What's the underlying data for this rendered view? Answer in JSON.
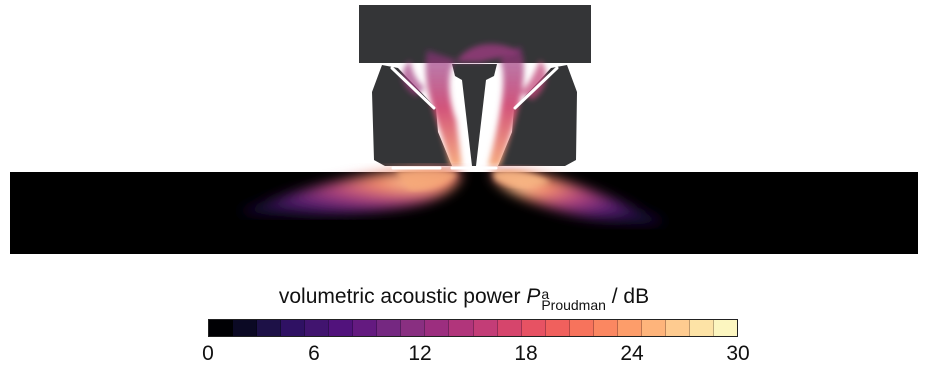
{
  "colorbar": {
    "label_prefix": "volumetric acoustic power ",
    "symbol": "P",
    "superscript": "a",
    "subscript": "Proudman",
    "unit": " / dB",
    "min": 0,
    "max": 30,
    "ticks": [
      "0",
      "6",
      "12",
      "18",
      "24",
      "30"
    ],
    "colors": [
      "#000004",
      "#0b0924",
      "#1d1147",
      "#2f1163",
      "#41146f",
      "#51127c",
      "#641a80",
      "#752881",
      "#892f81",
      "#9c2e7f",
      "#b1357b",
      "#c33d77",
      "#d6456c",
      "#e75263",
      "#f0605d",
      "#f7735c",
      "#fb8761",
      "#fd9d6a",
      "#feb47b",
      "#fecb90",
      "#fde3a6",
      "#fcf6c0"
    ]
  },
  "palette": {
    "background_domain": "#000000",
    "solid_geometry": "#343537",
    "high_power": "#f4b28a",
    "mid_power": "#b3467c",
    "low_power": "#4a1b6a"
  }
}
